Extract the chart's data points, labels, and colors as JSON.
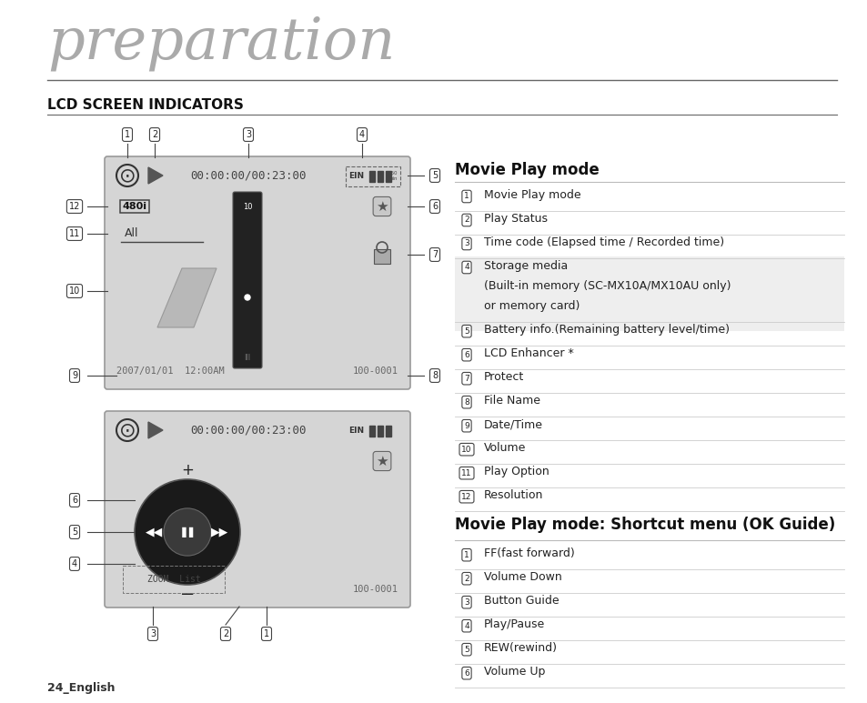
{
  "title": "preparation",
  "section": "LCD SCREEN INDICATORS",
  "bg_color": "#ffffff",
  "movie_play_mode_title": "Movie Play mode",
  "movie_play_mode_items": [
    [
      "1",
      "Movie Play mode",
      false
    ],
    [
      "2",
      "Play Status",
      false
    ],
    [
      "3",
      "Time code (Elapsed time / Recorded time)",
      false
    ],
    [
      "4",
      "Storage media\n(Built-in memory (SC-MX10A/MX10AU only)\nor memory card)",
      true
    ],
    [
      "5",
      "Battery info.(Remaining battery level/time)",
      false
    ],
    [
      "6",
      "LCD Enhancer *",
      false
    ],
    [
      "7",
      "Protect",
      false
    ],
    [
      "8",
      "File Name",
      false
    ],
    [
      "9",
      "Date/Time",
      false
    ],
    [
      "10",
      "Volume",
      false
    ],
    [
      "11",
      "Play Option",
      false
    ],
    [
      "12",
      "Resolution",
      false
    ]
  ],
  "shortcut_title": "Movie Play mode: Shortcut menu (OK Guide)",
  "shortcut_items": [
    [
      "1",
      "FF(fast forward)"
    ],
    [
      "2",
      "Volume Down"
    ],
    [
      "3",
      "Button Guide"
    ],
    [
      "4",
      "Play/Pause"
    ],
    [
      "5",
      "REW(rewind)"
    ],
    [
      "6",
      "Volume Up"
    ]
  ],
  "footer": "24_English"
}
